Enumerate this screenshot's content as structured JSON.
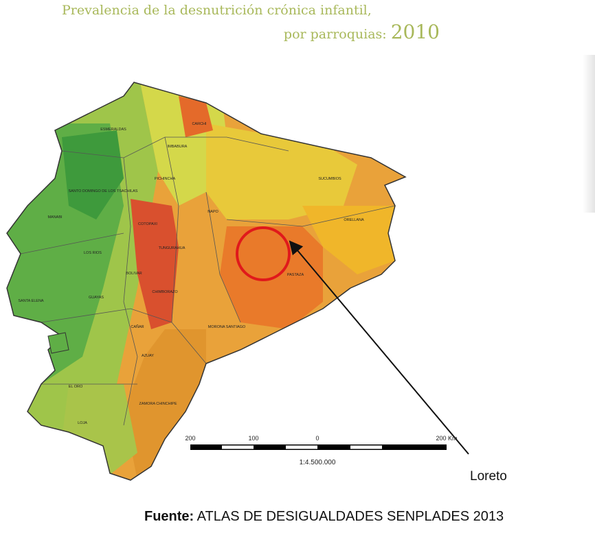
{
  "header": {
    "title_line1": "Prevalencia de la desnutrición crónica infantil,",
    "title_line2": "por parroquias:",
    "title_year": "2010"
  },
  "map": {
    "labels": [
      "ESMERALDAS",
      "CARCHI",
      "IMBABURA",
      "PICHINCHA",
      "SANTO DOMINGO DE LOS TSACHILAS",
      "SUCUMBIOS",
      "NAPO",
      "ORELLANA",
      "MANABI",
      "COTOPAXI",
      "LOS RIOS",
      "TUNGURAHUA",
      "BOLIVAR",
      "PASTAZA",
      "SANTA ELENA",
      "GUAYAS",
      "CHIMBORAZO",
      "CAÑAR",
      "MORONA SANTIAGO",
      "AZUAY",
      "EL ORO",
      "LOJA",
      "ZAMORA CHINCHIPE"
    ]
  },
  "scale": {
    "ticks": [
      "200",
      "100",
      "0",
      "200 Km"
    ],
    "ratio": "1:4.500.000"
  },
  "annotation": "Loreto",
  "source": {
    "label": "Fuente:",
    "text": "ATLAS DE DESIGUALDADES SENPLADES 2013"
  }
}
